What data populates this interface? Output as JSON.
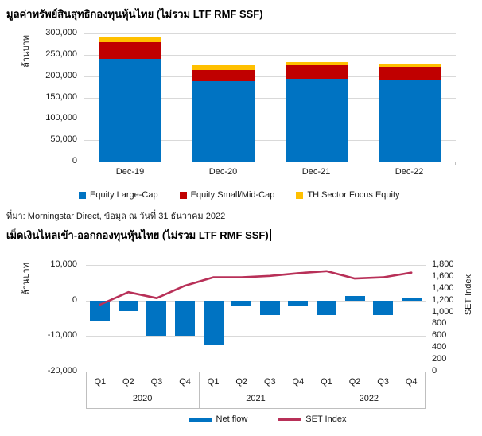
{
  "source_note": "ที่มา: Morningstar Direct, ข้อมูล ณ วันที่ 31 ธันวาคม 2022",
  "colors": {
    "gridline": "#D9D9D9",
    "axis_line": "#BFBFBF",
    "text": "#1A1A1A"
  },
  "chart_data": [
    {
      "type": "bar",
      "stacked": true,
      "title": "มูลค่าทรัพย์สินสุทธิกองทุนหุ้นไทย (ไม่รวม LTF RMF SSF)",
      "ylabel": "ล้านบาท",
      "categories": [
        "Dec-19",
        "Dec-20",
        "Dec-21",
        "Dec-22"
      ],
      "series": [
        {
          "name": "Equity Large-Cap",
          "color": "#0073C2",
          "values": [
            240000,
            188000,
            194000,
            192000
          ]
        },
        {
          "name": "Equity Small/Mid-Cap",
          "color": "#C00000",
          "values": [
            40000,
            27000,
            31000,
            29000
          ]
        },
        {
          "name": "TH Sector Focus Equity",
          "color": "#FFC000",
          "values": [
            12000,
            10000,
            8000,
            8000
          ]
        }
      ],
      "ylim": [
        0,
        300000
      ],
      "ytick_step": 50000,
      "grid": true,
      "legend_position": "bottom"
    },
    {
      "type": "combo",
      "title": "เม็ดเงินไหลเข้า-ออกกองทุนหุ้นไทย (ไม่รวม LTF RMF SSF)",
      "ylabel_left": "ล้านบาท",
      "ylabel_right": "SET Index",
      "year_groups": [
        {
          "year": "2020",
          "quarters": [
            "Q1",
            "Q2",
            "Q3",
            "Q4"
          ]
        },
        {
          "year": "2021",
          "quarters": [
            "Q1",
            "Q2",
            "Q3",
            "Q4"
          ]
        },
        {
          "year": "2022",
          "quarters": [
            "Q1",
            "Q2",
            "Q3",
            "Q4"
          ]
        }
      ],
      "bar_series": {
        "name": "Net flow",
        "type": "bar",
        "color": "#0073C2",
        "values": [
          -6000,
          -2900,
          -9900,
          -9900,
          -12700,
          -1700,
          -4000,
          -1400,
          -4000,
          1200,
          -4000,
          600
        ]
      },
      "line_series": {
        "name": "SET Index",
        "type": "line",
        "color": "#B83058",
        "values": [
          1130,
          1340,
          1240,
          1450,
          1590,
          1590,
          1615,
          1660,
          1695,
          1570,
          1590,
          1670
        ]
      },
      "ylim_left": [
        -20000,
        10000
      ],
      "ytick_step_left": 10000,
      "ylim_right": [
        0,
        1800
      ],
      "ytick_step_right": 200,
      "grid": true,
      "legend_position": "bottom"
    }
  ]
}
